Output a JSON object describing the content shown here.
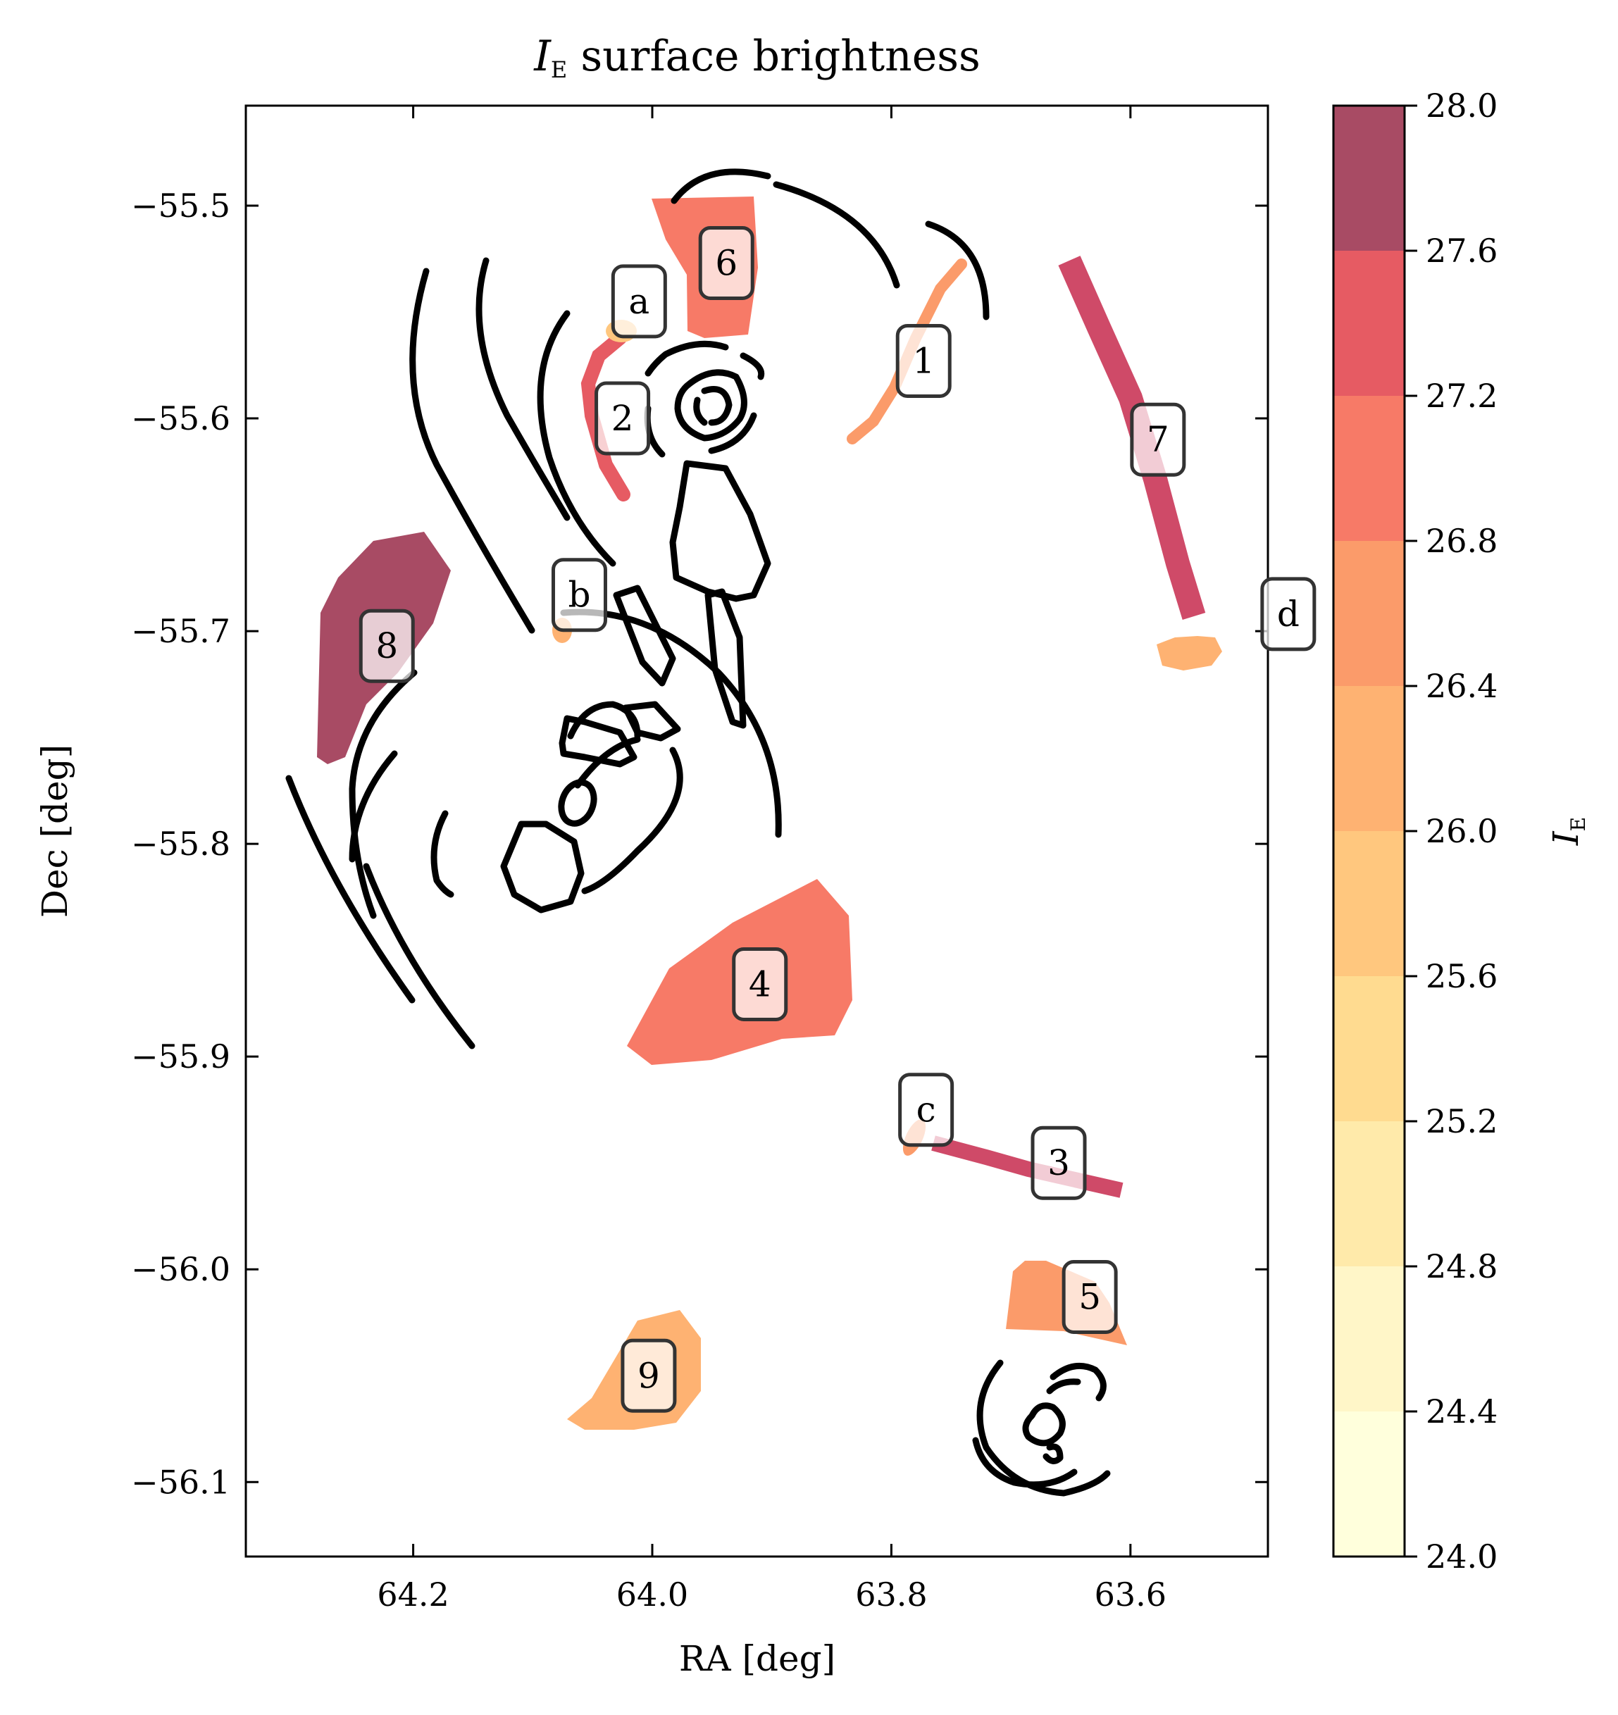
{
  "chart_data": {
    "type": "map",
    "title": "I_E surface brightness",
    "title_main": "I",
    "title_sub": "E",
    "title_rest": " surface brightness",
    "xlabel": "RA [deg]",
    "ylabel": "Dec [deg]",
    "xlim": [
      64.34,
      63.485
    ],
    "ylim": [
      -56.135,
      -55.453
    ],
    "xticks": [
      64.2,
      64.0,
      63.8,
      63.6
    ],
    "xtick_labels": [
      "64.2",
      "64.0",
      "63.8",
      "63.6"
    ],
    "yticks": [
      -55.5,
      -55.6,
      -55.7,
      -55.8,
      -55.9,
      -56.0,
      -56.1
    ],
    "ytick_labels": [
      "−55.5",
      "−55.6",
      "−55.7",
      "−55.8",
      "−55.9",
      "−56.0",
      "−56.1"
    ],
    "colorbar": {
      "label_main": "I",
      "label_sub": "E",
      "min": 24.0,
      "max": 28.0,
      "bands": [
        {
          "from": 24.0,
          "to": 24.4,
          "color": "#ffffdc"
        },
        {
          "from": 24.4,
          "to": 24.8,
          "color": "#fff6c8"
        },
        {
          "from": 24.8,
          "to": 25.2,
          "color": "#ffeaaa"
        },
        {
          "from": 25.2,
          "to": 25.6,
          "color": "#ffdb90"
        },
        {
          "from": 25.6,
          "to": 26.0,
          "color": "#ffc77e"
        },
        {
          "from": 26.0,
          "to": 26.4,
          "color": "#feb272"
        },
        {
          "from": 26.4,
          "to": 26.8,
          "color": "#fb9b6a"
        },
        {
          "from": 26.8,
          "to": 27.2,
          "color": "#f77a67"
        },
        {
          "from": 27.2,
          "to": 27.6,
          "color": "#e65b63"
        },
        {
          "from": 27.6,
          "to": 28.0,
          "color": "#cf4a68"
        },
        {
          "from": 28.0,
          "to": 28.0,
          "color": "#a84b64"
        }
      ],
      "ticks": [
        24.0,
        24.4,
        24.8,
        25.2,
        25.6,
        26.0,
        26.4,
        26.8,
        27.2,
        27.6,
        28.0
      ],
      "tick_labels": [
        "24.0",
        "24.4",
        "24.8",
        "25.2",
        "25.6",
        "26.0",
        "26.4",
        "26.8",
        "27.2",
        "27.6",
        "28.0"
      ]
    },
    "regions": [
      {
        "id": "1",
        "ra": 63.773,
        "dec": -55.573,
        "color": "#fb9b6a"
      },
      {
        "id": "2",
        "ra": 64.025,
        "dec": -55.6,
        "color": "#e65b63"
      },
      {
        "id": "3",
        "ra": 63.66,
        "dec": -55.95,
        "color": "#cf4a68"
      },
      {
        "id": "4",
        "ra": 63.91,
        "dec": -55.866,
        "color": "#f77a67"
      },
      {
        "id": "5",
        "ra": 63.634,
        "dec": -56.013,
        "color": "#fb9b6a"
      },
      {
        "id": "6",
        "ra": 63.938,
        "dec": -55.527,
        "color": "#f77a67"
      },
      {
        "id": "7",
        "ra": 63.577,
        "dec": -55.61,
        "color": "#cf4a68"
      },
      {
        "id": "8",
        "ra": 64.222,
        "dec": -55.707,
        "color": "#a84b64"
      },
      {
        "id": "9",
        "ra": 64.003,
        "dec": -56.05,
        "color": "#feb272"
      },
      {
        "id": "a",
        "ra": 64.011,
        "dec": -55.545,
        "color": "#ffc77e"
      },
      {
        "id": "b",
        "ra": 64.061,
        "dec": -55.683,
        "color": "#feb272"
      },
      {
        "id": "c",
        "ra": 63.771,
        "dec": -55.925,
        "color": "#fb9b6a"
      },
      {
        "id": "d",
        "ra": 63.468,
        "dec": -55.692,
        "color": "#feb272"
      }
    ]
  }
}
